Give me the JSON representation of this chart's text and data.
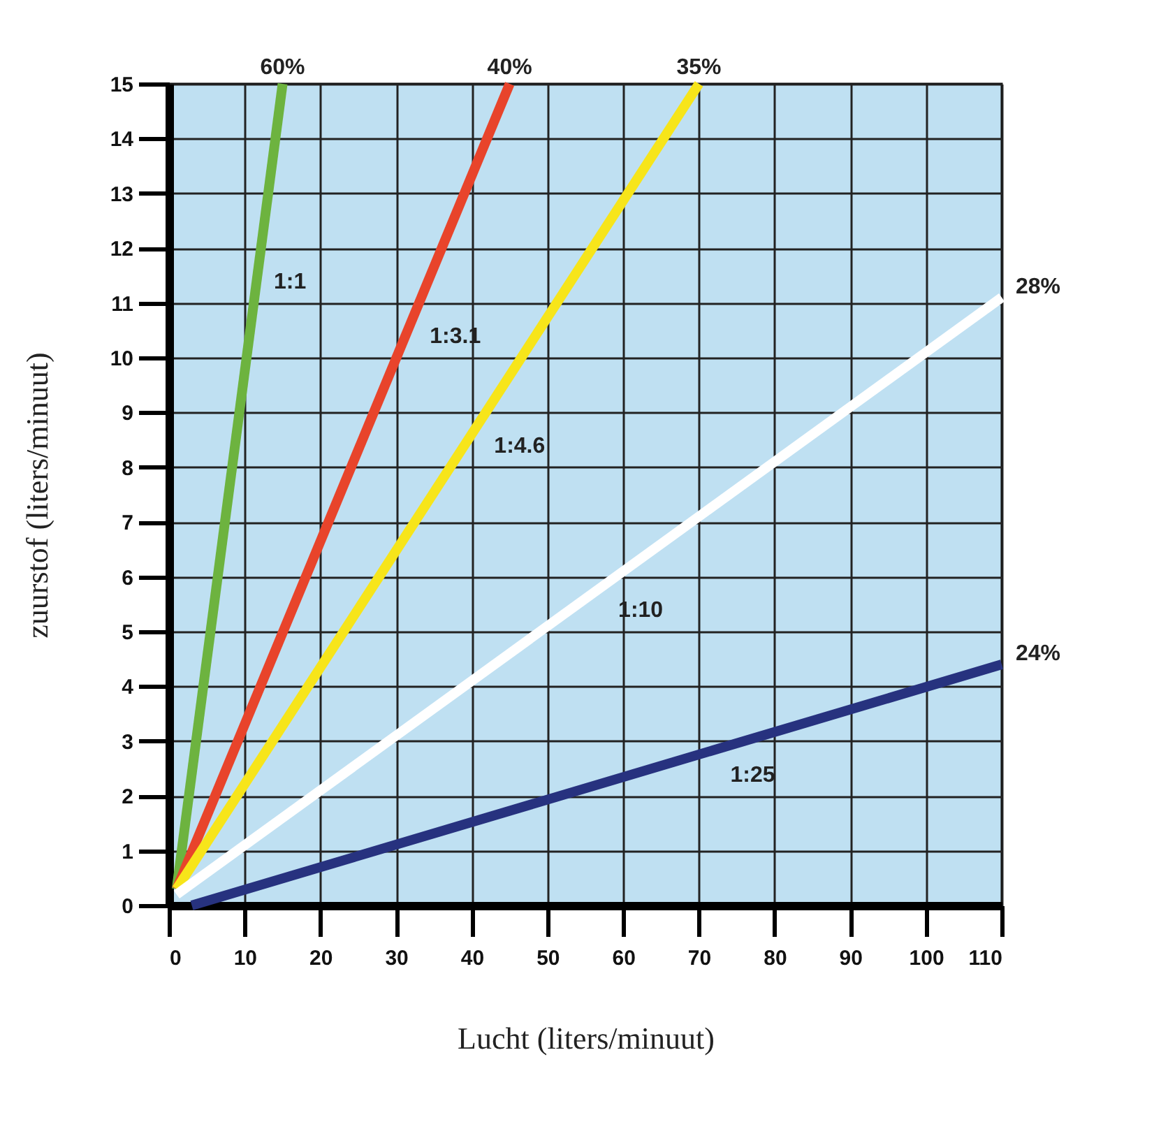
{
  "chart_data": {
    "type": "line",
    "xlabel": "Lucht (liters/minuut)",
    "ylabel": "zuurstof (liters/minuut)",
    "xlim": [
      0,
      110
    ],
    "ylim": [
      0,
      15
    ],
    "xticks": [
      0,
      10,
      20,
      30,
      40,
      50,
      60,
      70,
      80,
      90,
      100,
      110
    ],
    "yticks": [
      0,
      1,
      2,
      3,
      4,
      5,
      6,
      7,
      8,
      9,
      10,
      11,
      12,
      13,
      14,
      15
    ],
    "grid": true,
    "marker": "none",
    "line_style": "solid",
    "series": [
      {
        "name": "60%",
        "color": "#6db33f",
        "x": [
          1,
          15
        ],
        "values": [
          0.3,
          15
        ]
      },
      {
        "name": "40%",
        "color": "#e8442b",
        "x": [
          1,
          45
        ],
        "values": [
          0.3,
          15
        ]
      },
      {
        "name": "35%",
        "color": "#f7e51a",
        "x": [
          1,
          70
        ],
        "values": [
          0.3,
          15
        ]
      },
      {
        "name": "28%",
        "color": "#ffffff",
        "x": [
          1,
          110
        ],
        "values": [
          0.2,
          11.1
        ]
      },
      {
        "name": "24%",
        "color": "#27327f",
        "x": [
          3,
          110
        ],
        "values": [
          0,
          4.4
        ]
      }
    ],
    "annotations": [
      {
        "text": "1:1",
        "x": 12,
        "y": 11.85
      },
      {
        "text": "1:3.1",
        "x": 32.6,
        "y": 10.85
      },
      {
        "text": "1:4.6",
        "x": 41.1,
        "y": 8.85
      },
      {
        "text": "1:10",
        "x": 57.5,
        "y": 5.85
      },
      {
        "text": "1:25",
        "x": 72.3,
        "y": 2.85
      }
    ]
  }
}
